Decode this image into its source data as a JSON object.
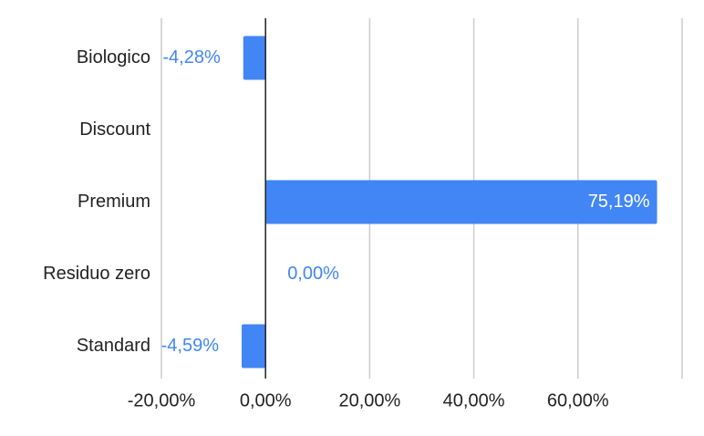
{
  "chart_data": {
    "type": "hbar",
    "categories": [
      "Biologico",
      "Discount",
      "Premium",
      "Residuo zero",
      "Standard"
    ],
    "values": [
      -4.28,
      null,
      75.19,
      0.0,
      -4.59
    ],
    "value_labels": [
      "-4,28%",
      null,
      "75,19%",
      "0,00%",
      "-4,59%"
    ],
    "color": "#4285f4",
    "xlim": [
      -20,
      80
    ],
    "xticks": [
      {
        "value": -20,
        "label": "-20,00%"
      },
      {
        "value": 0,
        "label": "0,00%"
      },
      {
        "value": 20,
        "label": "20,00%"
      },
      {
        "value": 40,
        "label": "40,00%"
      },
      {
        "value": 60,
        "label": "60,00%"
      }
    ],
    "grid": true
  }
}
